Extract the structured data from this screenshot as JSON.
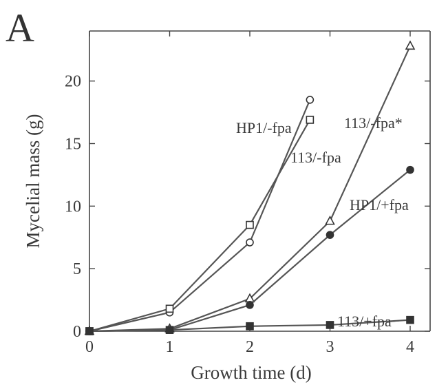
{
  "panel_label": "A",
  "chart_data": {
    "type": "line",
    "title": "",
    "xlabel": "Growth time (d)",
    "ylabel": "Mycelial mass (g)",
    "xlim": [
      0,
      4
    ],
    "ylim": [
      0,
      24
    ],
    "xticks": [
      0,
      1,
      2,
      3,
      4
    ],
    "yticks": [
      0,
      5,
      10,
      15,
      20
    ],
    "grid": false,
    "legend": "inline labels",
    "series": [
      {
        "name": "HP1/-fpa",
        "marker": "circle-open",
        "x": [
          0,
          1,
          2,
          2.75
        ],
        "y": [
          0,
          1.5,
          7.1,
          18.5
        ]
      },
      {
        "name": "113/-fpa",
        "marker": "square-open",
        "x": [
          0,
          1,
          2,
          2.75
        ],
        "y": [
          0,
          1.8,
          8.5,
          16.9
        ]
      },
      {
        "name": "113/-fpa*",
        "marker": "triangle-open",
        "x": [
          0,
          1,
          2,
          3,
          4
        ],
        "y": [
          0,
          0.2,
          2.6,
          8.8,
          22.8
        ]
      },
      {
        "name": "HP1/+fpa",
        "marker": "circle-filled",
        "x": [
          0,
          1,
          2,
          3,
          4
        ],
        "y": [
          0,
          0.1,
          2.1,
          7.7,
          12.9
        ]
      },
      {
        "name": "113/+fpa",
        "marker": "square-filled",
        "x": [
          0,
          1,
          2,
          3,
          4
        ],
        "y": [
          0,
          0.1,
          0.4,
          0.5,
          0.9
        ]
      }
    ]
  }
}
